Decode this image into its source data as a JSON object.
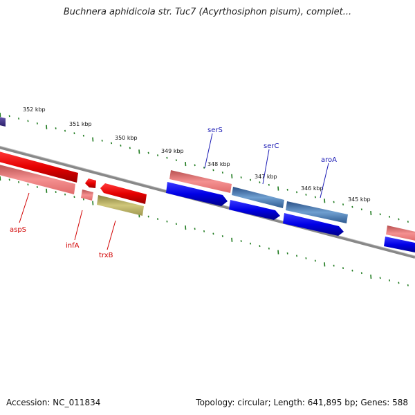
{
  "title": "Buchnera aphidicola str. Tuc7 (Acyrthosiphon pisum), complet...",
  "footer": {
    "accession": "Accession: NC_011834",
    "summary": "Topology: circular; Length: 641,895 bp; Genes: 588"
  },
  "scale_labels": [
    "352 kbp",
    "351 kbp",
    "350 kbp",
    "349 kbp",
    "348 kbp",
    "347 kbp",
    "346 kbp",
    "345 kbp"
  ],
  "gene_labels": {
    "serS": "serS",
    "serC": "serC",
    "aroA": "aroA",
    "aspS": "aspS",
    "infA": "infA",
    "trxB": "trxB"
  },
  "colors": {
    "forward_blue": "#0000ee",
    "steel_blue": "#4a78b0",
    "reverse_red": "#ee0000",
    "pink": "#f08080",
    "olive": "#b8b060",
    "purple": "#4b3a8c",
    "backbone": "#888888",
    "tick_green": "#1e7a1e"
  }
}
